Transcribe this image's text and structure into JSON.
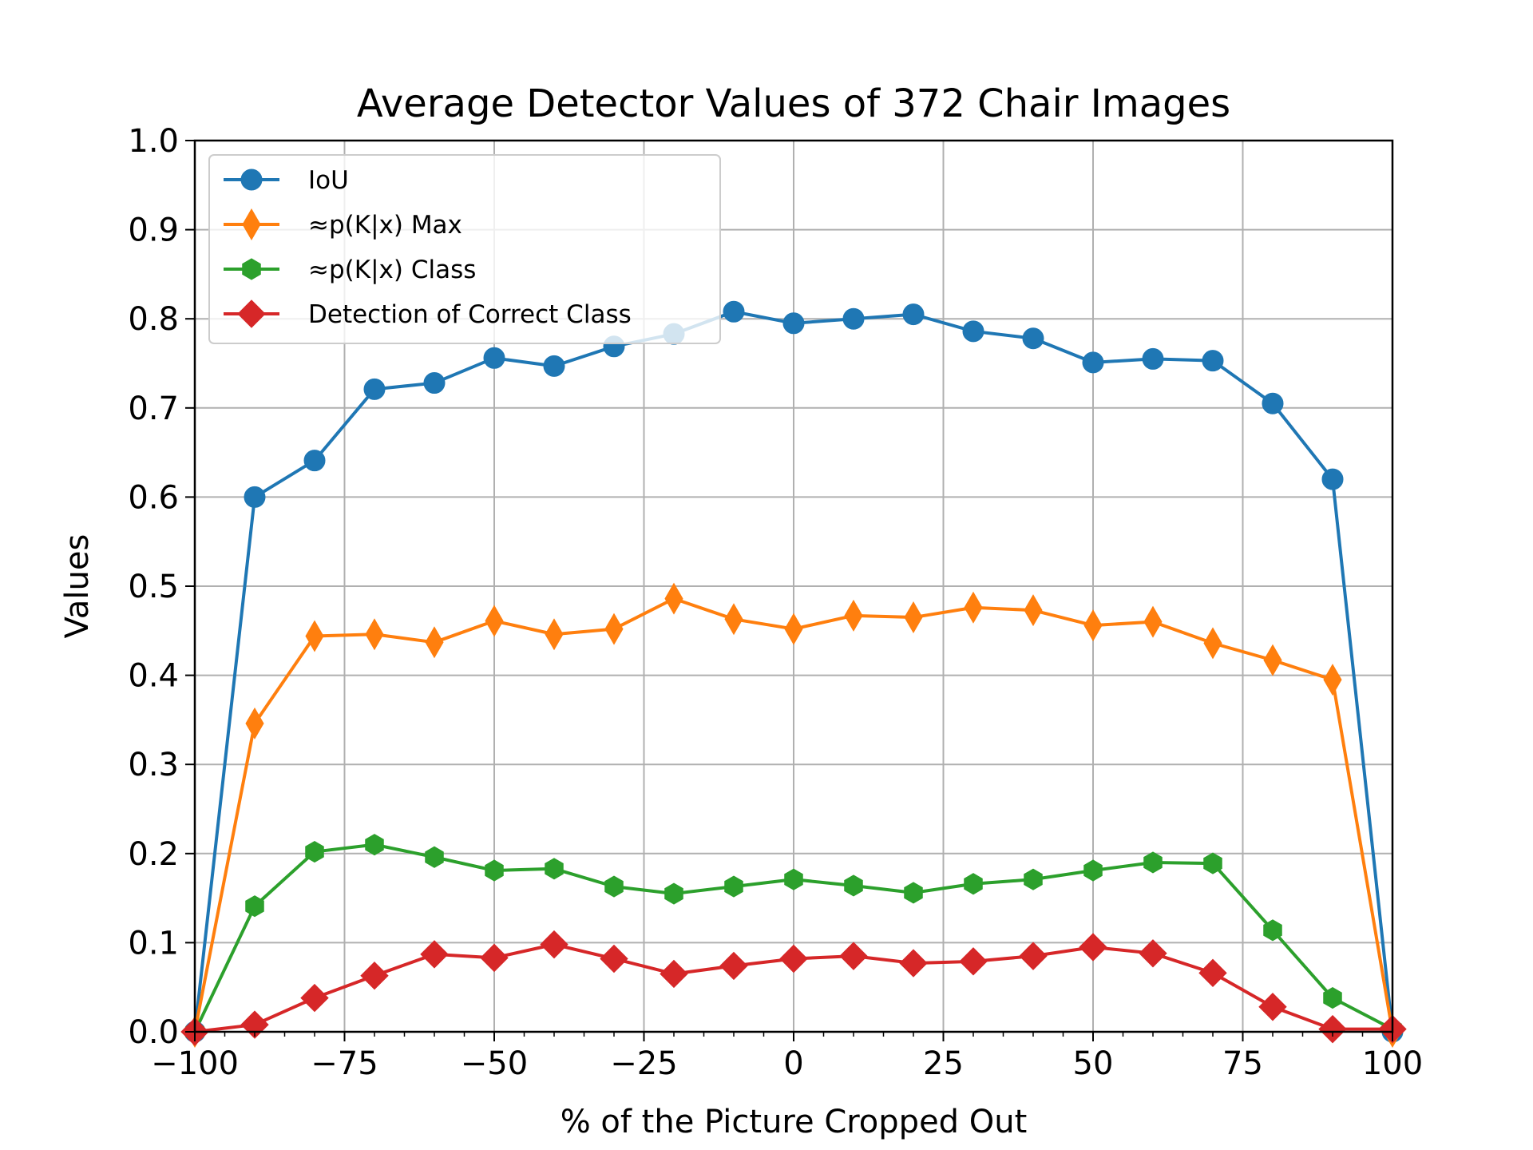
{
  "chart_data": {
    "type": "line",
    "title": "Average Detector Values of 372 Chair Images",
    "xlabel": "% of the Picture Cropped Out",
    "ylabel": "Values",
    "xlim": [
      -100,
      100
    ],
    "ylim": [
      0,
      1.0
    ],
    "grid": true,
    "legend_position": "upper-left",
    "x_ticks": [
      -100,
      -75,
      -50,
      -25,
      0,
      25,
      50,
      75,
      100
    ],
    "x_tick_labels": [
      "−100",
      "−75",
      "−50",
      "−25",
      "0",
      "25",
      "50",
      "75",
      "100"
    ],
    "y_ticks": [
      0.0,
      0.1,
      0.2,
      0.3,
      0.4,
      0.5,
      0.6,
      0.7,
      0.8,
      0.9,
      1.0
    ],
    "y_tick_labels": [
      "0.0",
      "0.1",
      "0.2",
      "0.3",
      "0.4",
      "0.5",
      "0.6",
      "0.7",
      "0.8",
      "0.9",
      "1.0"
    ],
    "x": [
      -100,
      -90,
      -80,
      -70,
      -60,
      -50,
      -40,
      -30,
      -20,
      -10,
      0,
      10,
      20,
      30,
      40,
      50,
      60,
      70,
      80,
      90,
      100
    ],
    "series": [
      {
        "name": "IoU",
        "color": "#1f77b4",
        "marker": "circle",
        "values": [
          0.0,
          0.6,
          0.641,
          0.721,
          0.728,
          0.756,
          0.747,
          0.769,
          0.783,
          0.808,
          0.795,
          0.8,
          0.805,
          0.786,
          0.778,
          0.751,
          0.755,
          0.753,
          0.705,
          0.62,
          0.0
        ]
      },
      {
        "name": "≈p(K|x) Max",
        "color": "#ff7f0e",
        "marker": "thin-diamond",
        "values": [
          0.0,
          0.346,
          0.444,
          0.446,
          0.437,
          0.461,
          0.446,
          0.452,
          0.486,
          0.463,
          0.452,
          0.467,
          0.465,
          0.476,
          0.473,
          0.456,
          0.46,
          0.436,
          0.417,
          0.395,
          0.0
        ]
      },
      {
        "name": "≈p(K|x) Class",
        "color": "#2ca02c",
        "marker": "hexagon",
        "values": [
          0.0,
          0.141,
          0.202,
          0.21,
          0.196,
          0.181,
          0.183,
          0.163,
          0.155,
          0.163,
          0.171,
          0.164,
          0.156,
          0.166,
          0.171,
          0.181,
          0.19,
          0.189,
          0.114,
          0.038,
          0.003
        ]
      },
      {
        "name": "Detection of Correct Class",
        "color": "#d62728",
        "marker": "diamond",
        "values": [
          0.0,
          0.008,
          0.038,
          0.063,
          0.087,
          0.083,
          0.098,
          0.082,
          0.065,
          0.074,
          0.082,
          0.085,
          0.077,
          0.079,
          0.085,
          0.095,
          0.088,
          0.066,
          0.028,
          0.003,
          0.003
        ]
      }
    ]
  }
}
